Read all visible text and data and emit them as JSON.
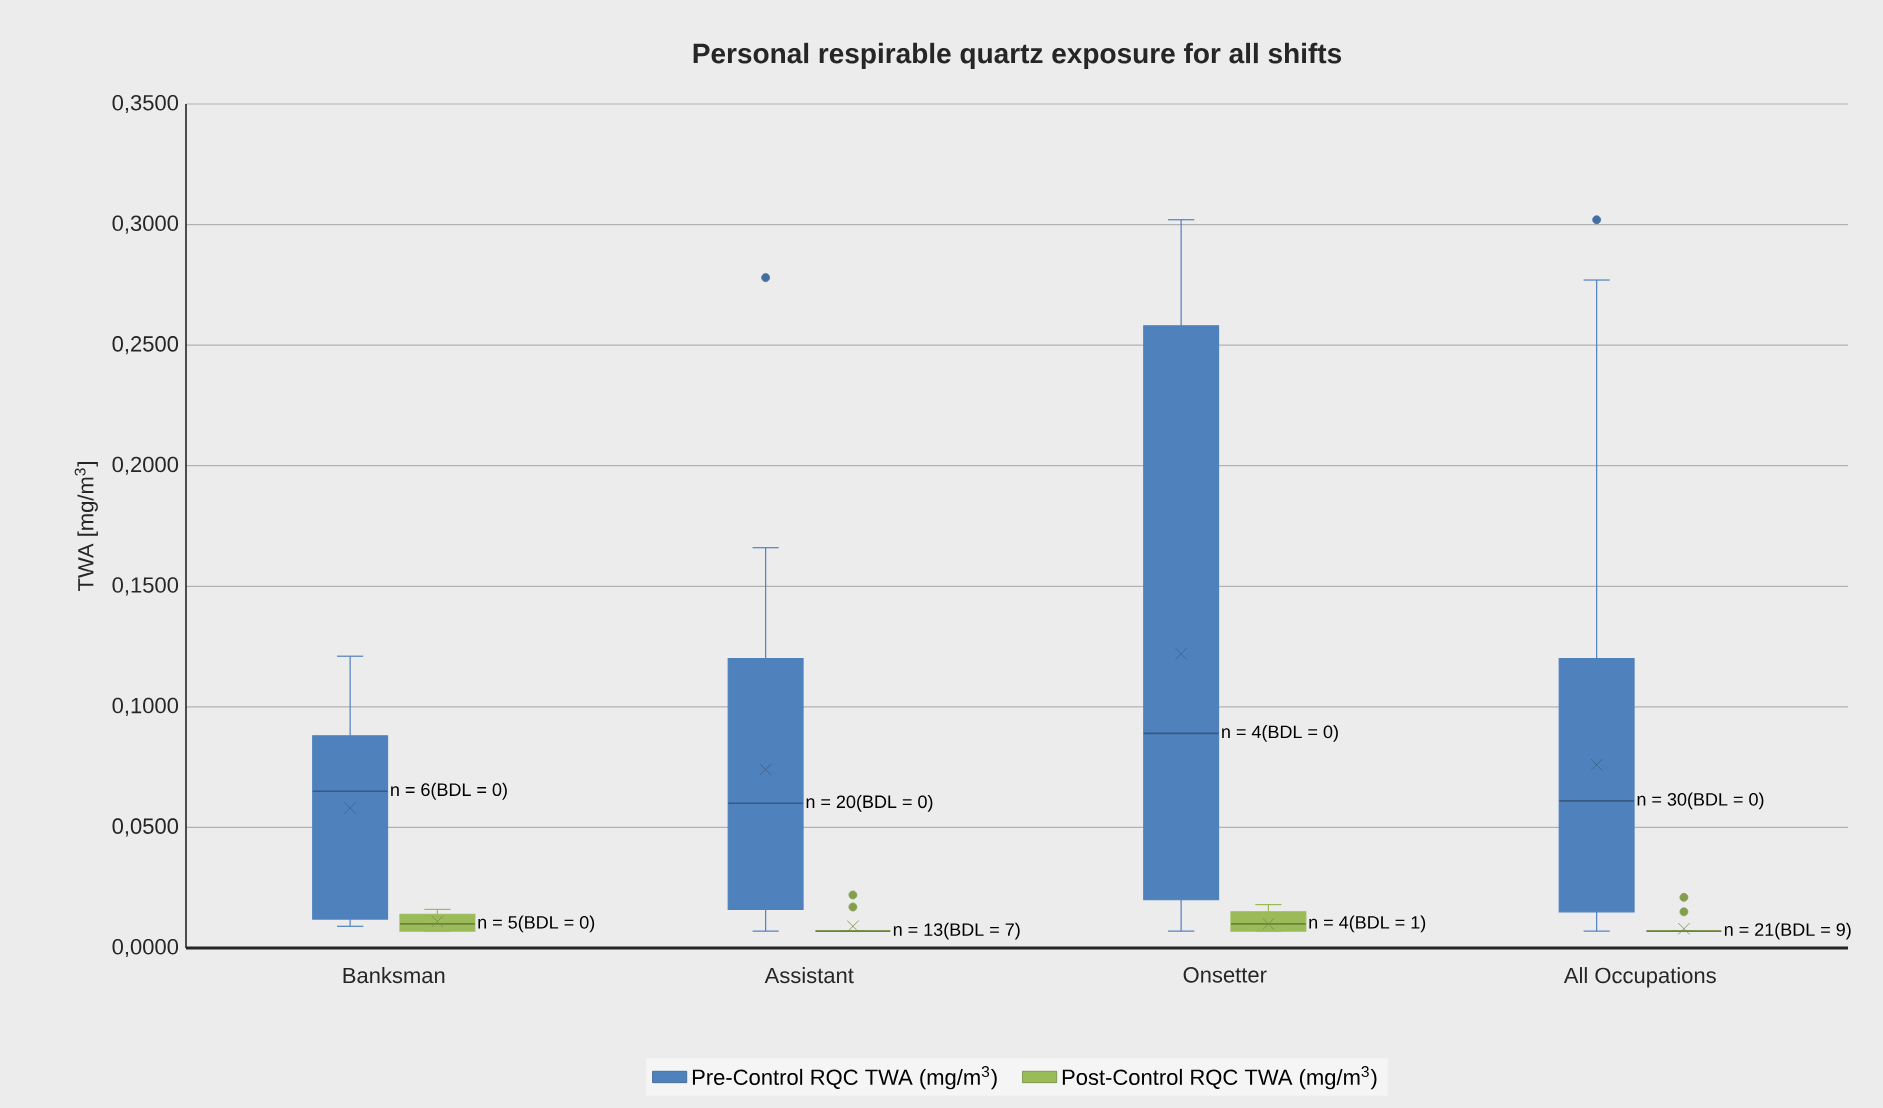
{
  "chart_data": {
    "type": "box",
    "title": "Personal respirable quartz exposure for all shifts",
    "ylabel": "TWA [mg/m$^{3}$]",
    "categories": [
      "Banksman",
      "Assistant",
      "Onsetter",
      "All Occupations"
    ],
    "series": [
      {
        "name": "Pre-Control RQC TWA (mg/m$^{3}$)",
        "color": "#4f81bd",
        "boxes": [
          {
            "low": 0.009,
            "q1": 0.012,
            "median": 0.065,
            "q3": 0.088,
            "high": 0.121,
            "mean": 0.058
          },
          {
            "low": 0.007,
            "q1": 0.016,
            "median": 0.06,
            "q3": 0.12,
            "high": 0.166,
            "mean": 0.074,
            "outliers": [
              0.278
            ]
          },
          {
            "low": 0.007,
            "q1": 0.02,
            "median": 0.089,
            "q3": 0.258,
            "high": 0.302,
            "mean": 0.122
          },
          {
            "low": 0.007,
            "q1": 0.015,
            "median": 0.061,
            "q3": 0.12,
            "high": 0.277,
            "mean": 0.076,
            "outliers": [
              0.302
            ]
          }
        ]
      },
      {
        "name": "Post-Control RQC TWA (mg/m$^{3}$)",
        "color": "#9bbb59",
        "boxes": [
          {
            "low": 0.007,
            "q1": 0.007,
            "median": 0.01,
            "q3": 0.014,
            "high": 0.016,
            "mean": 0.011
          },
          {
            "low": 0.007,
            "q1": 0.007,
            "median": 0.007,
            "q3": 0.007,
            "high": 0.007,
            "mean": 0.009,
            "outliers": [
              0.017,
              0.022
            ]
          },
          {
            "low": 0.007,
            "q1": 0.007,
            "median": 0.01,
            "q3": 0.015,
            "high": 0.018,
            "mean": 0.01
          },
          {
            "low": 0.007,
            "q1": 0.007,
            "median": 0.007,
            "q3": 0.007,
            "high": 0.007,
            "mean": 0.008,
            "outliers": [
              0.015,
              0.021
            ]
          }
        ]
      }
    ],
    "ylim": [
      0,
      0.35
    ],
    "yticks": [
      {
        "value": 0,
        "label": "0,0000"
      },
      {
        "value": 0.05,
        "label": "0,0500"
      },
      {
        "value": 0.1,
        "label": "0,1000"
      },
      {
        "value": 0.15,
        "label": "0,1500"
      },
      {
        "value": 0.2,
        "label": "0,2000"
      },
      {
        "value": 0.25,
        "label": "0,2500"
      },
      {
        "value": 0.3,
        "label": "0,3000"
      },
      {
        "value": 0.35,
        "label": "0,3500"
      }
    ],
    "grid": "y",
    "legend": "bottom",
    "annotations": [
      "n = 6(BDL = 0)",
      "n = 5(BDL = 0)",
      "n = 20(BDL = 0)",
      "n = 13(BDL = 7)",
      "n = 4(BDL = 0)",
      "n = 4(BDL = 1)",
      "n = 30(BDL = 0)",
      "n = 21(BDL = 9)"
    ]
  }
}
